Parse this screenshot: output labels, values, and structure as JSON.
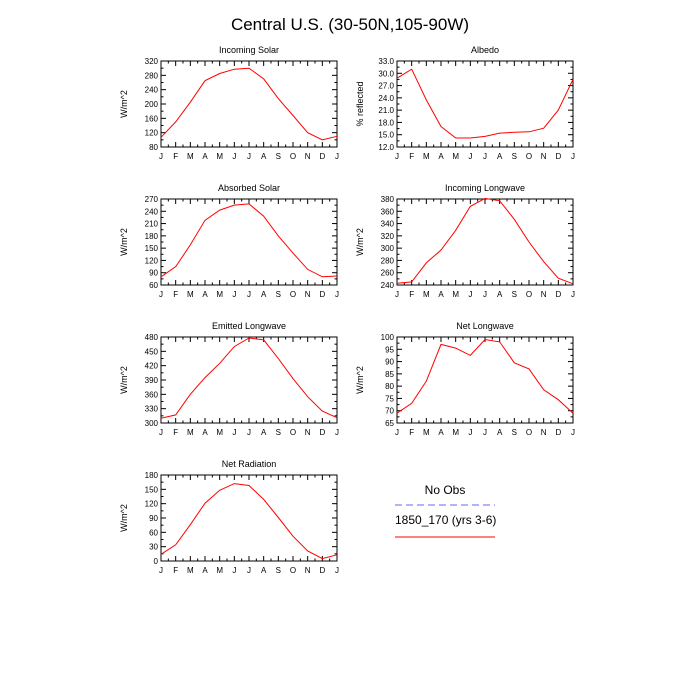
{
  "title": "Central U.S. (30-50N,105-90W)",
  "months": [
    "J",
    "F",
    "M",
    "A",
    "M",
    "J",
    "J",
    "A",
    "S",
    "O",
    "N",
    "D",
    "J"
  ],
  "legend": {
    "obs_label": "No Obs",
    "model_label": "1850_170 (yrs 3-6)",
    "obs_color": "#6666ff",
    "model_color": "#ff0000"
  },
  "chart_data": [
    {
      "type": "line",
      "title": "Incoming Solar",
      "ylabel": "W/m^2",
      "ylim": [
        80,
        320
      ],
      "yticks": [
        80,
        120,
        160,
        200,
        240,
        280,
        320
      ],
      "ytick_labels": [
        "80",
        "120",
        "160",
        "200",
        "240",
        "280",
        "320"
      ],
      "series": [
        {
          "name": "1850_170 (yrs 3-6)",
          "values": [
            107,
            150,
            205,
            265,
            285,
            297,
            300,
            270,
            215,
            168,
            120,
            100,
            110
          ]
        }
      ]
    },
    {
      "type": "line",
      "title": "Albedo",
      "ylabel": "% reflected",
      "ylim": [
        12,
        33
      ],
      "yticks": [
        12,
        15,
        18,
        21,
        24,
        27,
        30,
        33
      ],
      "ytick_labels": [
        "12.0",
        "15.0",
        "18.0",
        "21.0",
        "24.0",
        "27.0",
        "30.0",
        "33.0"
      ],
      "series": [
        {
          "name": "1850_170 (yrs 3-6)",
          "values": [
            28.8,
            31.0,
            23.5,
            17.0,
            14.2,
            14.2,
            14.6,
            15.4,
            15.6,
            15.7,
            16.6,
            21.0,
            28.5
          ]
        }
      ]
    },
    {
      "type": "line",
      "title": "Absorbed Solar",
      "ylabel": "W/m^2",
      "ylim": [
        60,
        270
      ],
      "yticks": [
        60,
        90,
        120,
        150,
        180,
        210,
        240,
        270
      ],
      "ytick_labels": [
        "60",
        "90",
        "120",
        "150",
        "180",
        "210",
        "240",
        "270"
      ],
      "series": [
        {
          "name": "1850_170 (yrs 3-6)",
          "values": [
            80,
            105,
            158,
            218,
            243,
            255,
            258,
            228,
            180,
            138,
            98,
            80,
            82
          ]
        }
      ]
    },
    {
      "type": "line",
      "title": "Incoming Longwave",
      "ylabel": "W/m^2",
      "ylim": [
        240,
        380
      ],
      "yticks": [
        240,
        260,
        280,
        300,
        320,
        340,
        360,
        380
      ],
      "ytick_labels": [
        "240",
        "260",
        "280",
        "300",
        "320",
        "340",
        "360",
        "380"
      ],
      "series": [
        {
          "name": "1850_170 (yrs 3-6)",
          "values": [
            243,
            245,
            276,
            297,
            329,
            368,
            381,
            377,
            347,
            310,
            278,
            251,
            242
          ]
        }
      ]
    },
    {
      "type": "line",
      "title": "Emitted Longwave",
      "ylabel": "W/m^2",
      "ylim": [
        300,
        480
      ],
      "yticks": [
        300,
        330,
        360,
        390,
        420,
        450,
        480
      ],
      "ytick_labels": [
        "300",
        "330",
        "360",
        "390",
        "420",
        "450",
        "480"
      ],
      "series": [
        {
          "name": "1850_170 (yrs 3-6)",
          "values": [
            310,
            317,
            360,
            395,
            425,
            460,
            478,
            474,
            435,
            393,
            355,
            325,
            311
          ]
        }
      ]
    },
    {
      "type": "line",
      "title": "Net Longwave",
      "ylabel": "W/m^2",
      "ylim": [
        65,
        100
      ],
      "yticks": [
        65,
        70,
        75,
        80,
        85,
        90,
        95,
        100
      ],
      "ytick_labels": [
        "65",
        "70",
        "75",
        "80",
        "85",
        "90",
        "95",
        "100"
      ],
      "series": [
        {
          "name": "1850_170 (yrs 3-6)",
          "values": [
            69,
            73,
            82,
            97,
            95.5,
            92.5,
            99,
            98,
            89.5,
            87,
            78.5,
            74.5,
            69
          ]
        }
      ]
    },
    {
      "type": "line",
      "title": "Net Radiation",
      "ylabel": "W/m^2",
      "ylim": [
        0,
        180
      ],
      "yticks": [
        0,
        30,
        60,
        90,
        120,
        150,
        180
      ],
      "ytick_labels": [
        "0",
        "30",
        "60",
        "90",
        "120",
        "150",
        "180"
      ],
      "series": [
        {
          "name": "1850_170 (yrs 3-6)",
          "values": [
            14,
            34,
            76,
            121,
            148,
            162,
            158,
            129,
            91,
            52,
            21,
            5,
            13
          ]
        }
      ]
    }
  ]
}
